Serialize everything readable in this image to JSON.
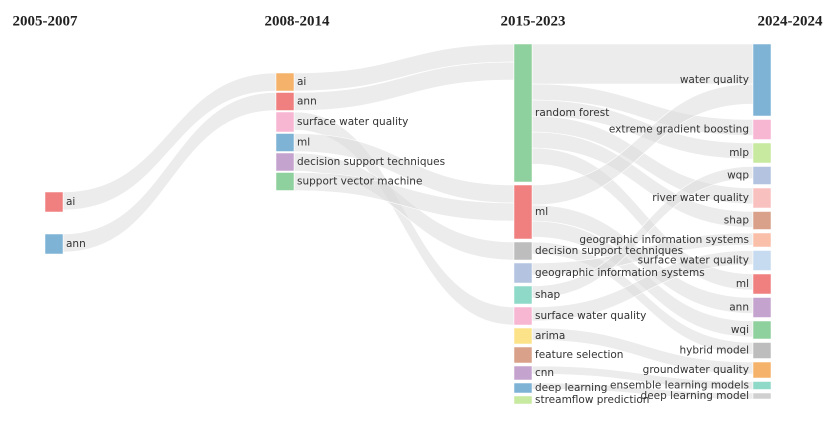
{
  "chart_data": {
    "type": "sankey",
    "columns": [
      {
        "label": "2005-2007",
        "nodes": [
          {
            "name": "ai",
            "color": "#f08080",
            "value": 10
          },
          {
            "name": "ann",
            "color": "#7fb3d5",
            "value": 10
          }
        ]
      },
      {
        "label": "2008-2014",
        "nodes": [
          {
            "name": "ai",
            "color": "#f5b26b",
            "value": 9
          },
          {
            "name": "ann",
            "color": "#f08080",
            "value": 9
          },
          {
            "name": "surface water quality",
            "color": "#f7b6d2",
            "value": 10
          },
          {
            "name": "ml",
            "color": "#7fb3d5",
            "value": 9
          },
          {
            "name": "decision support techniques",
            "color": "#c5a3cf",
            "value": 9
          },
          {
            "name": "support vector machine",
            "color": "#8fd19e",
            "value": 9
          }
        ]
      },
      {
        "label": "2015-2023",
        "nodes": [
          {
            "name": "random forest",
            "color": "#8fd19e",
            "value": 69
          },
          {
            "name": "ml",
            "color": "#f08080",
            "value": 27
          },
          {
            "name": "decision support techniques",
            "color": "#bdbdbd",
            "value": 9
          },
          {
            "name": "geographic information systems",
            "color": "#b3c3e0",
            "value": 10
          },
          {
            "name": "shap",
            "color": "#8fd9c9",
            "value": 9
          },
          {
            "name": "surface water quality",
            "color": "#f7b6d2",
            "value": 9
          },
          {
            "name": "arima",
            "color": "#fce38a",
            "value": 8
          },
          {
            "name": "feature selection",
            "color": "#d9a08a",
            "value": 8
          },
          {
            "name": "cnn",
            "color": "#c5a3cf",
            "value": 7
          },
          {
            "name": "deep learning",
            "color": "#7fb3d5",
            "value": 5
          },
          {
            "name": "streamflow prediction",
            "color": "#c7e9a0",
            "value": 4
          }
        ]
      },
      {
        "label": "2024-2024",
        "nodes": [
          {
            "name": "water quality",
            "color": "#7fb3d5",
            "value": 36
          },
          {
            "name": "extreme gradient boosting",
            "color": "#f7b6d2",
            "value": 10
          },
          {
            "name": "mlp",
            "color": "#c7e9a0",
            "value": 10
          },
          {
            "name": "wqp",
            "color": "#b3c3e0",
            "value": 9
          },
          {
            "name": "river water quality",
            "color": "#f9c0c0",
            "value": 10
          },
          {
            "name": "shap",
            "color": "#d9a08a",
            "value": 9
          },
          {
            "name": "geographic information systems",
            "color": "#f9bfa8",
            "value": 7
          },
          {
            "name": "surface water quality",
            "color": "#c6dbef",
            "value": 10
          },
          {
            "name": "ml",
            "color": "#f08080",
            "value": 10
          },
          {
            "name": "ann",
            "color": "#c5a3cf",
            "value": 10
          },
          {
            "name": "wqi",
            "color": "#8fd19e",
            "value": 9
          },
          {
            "name": "hybrid model",
            "color": "#bdbdbd",
            "value": 8
          },
          {
            "name": "groundwater quality",
            "color": "#f5b26b",
            "value": 8
          },
          {
            "name": "ensemble learning models",
            "color": "#8fd9c9",
            "value": 4
          },
          {
            "name": "deep learning model",
            "color": "#d0d0d0",
            "value": 3
          }
        ]
      }
    ],
    "links": [
      {
        "from": [
          0,
          0
        ],
        "to": [
          1,
          0
        ],
        "value": 9
      },
      {
        "from": [
          0,
          1
        ],
        "to": [
          1,
          1
        ],
        "value": 9
      },
      {
        "from": [
          1,
          0
        ],
        "to": [
          2,
          0
        ],
        "value": 9
      },
      {
        "from": [
          1,
          1
        ],
        "to": [
          2,
          0
        ],
        "value": 9
      },
      {
        "from": [
          1,
          2
        ],
        "to": [
          2,
          5
        ],
        "value": 9
      },
      {
        "from": [
          1,
          3
        ],
        "to": [
          2,
          1
        ],
        "value": 9
      },
      {
        "from": [
          1,
          4
        ],
        "to": [
          2,
          2
        ],
        "value": 9
      },
      {
        "from": [
          1,
          5
        ],
        "to": [
          2,
          1
        ],
        "value": 9
      },
      {
        "from": [
          2,
          0
        ],
        "to": [
          3,
          0
        ],
        "value": 20
      },
      {
        "from": [
          2,
          0
        ],
        "to": [
          3,
          1
        ],
        "value": 8
      },
      {
        "from": [
          2,
          0
        ],
        "to": [
          3,
          2
        ],
        "value": 8
      },
      {
        "from": [
          2,
          0
        ],
        "to": [
          3,
          4
        ],
        "value": 8
      },
      {
        "from": [
          2,
          0
        ],
        "to": [
          3,
          5
        ],
        "value": 8
      },
      {
        "from": [
          2,
          0
        ],
        "to": [
          3,
          8
        ],
        "value": 8
      },
      {
        "from": [
          2,
          1
        ],
        "to": [
          3,
          0
        ],
        "value": 10
      },
      {
        "from": [
          2,
          1
        ],
        "to": [
          3,
          9
        ],
        "value": 8
      },
      {
        "from": [
          2,
          1
        ],
        "to": [
          3,
          10
        ],
        "value": 8
      },
      {
        "from": [
          2,
          2
        ],
        "to": [
          3,
          11
        ],
        "value": 6
      },
      {
        "from": [
          2,
          3
        ],
        "to": [
          3,
          6
        ],
        "value": 6
      },
      {
        "from": [
          2,
          4
        ],
        "to": [
          3,
          3
        ],
        "value": 6
      },
      {
        "from": [
          2,
          5
        ],
        "to": [
          3,
          7
        ],
        "value": 7
      },
      {
        "from": [
          2,
          6
        ],
        "to": [
          3,
          12
        ],
        "value": 6
      },
      {
        "from": [
          2,
          8
        ],
        "to": [
          3,
          13
        ],
        "value": 4
      },
      {
        "from": [
          2,
          9
        ],
        "to": [
          3,
          14
        ],
        "value": 3
      }
    ]
  }
}
